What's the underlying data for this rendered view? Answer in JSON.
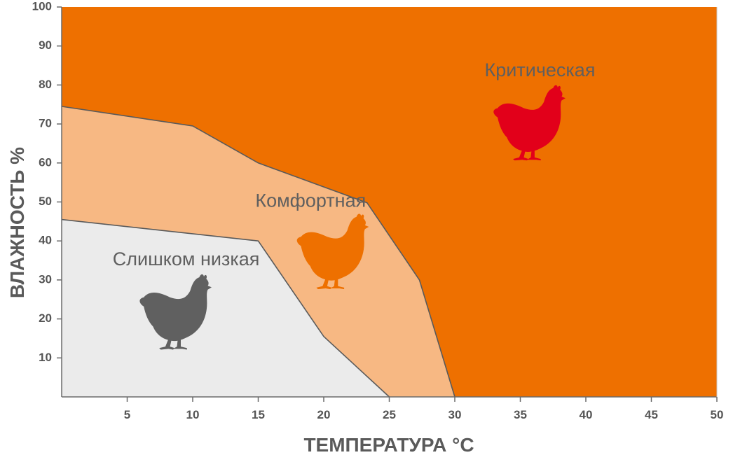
{
  "chart_data": {
    "type": "area",
    "xlabel": "ТЕМПЕРАТУРА °C",
    "ylabel": "ВЛАЖНОСТЬ %",
    "xlim": [
      0,
      50
    ],
    "ylim": [
      0,
      100
    ],
    "x_ticks": [
      5,
      10,
      15,
      20,
      25,
      30,
      35,
      40,
      45,
      50
    ],
    "y_ticks": [
      10,
      20,
      30,
      40,
      50,
      60,
      70,
      80,
      90,
      100
    ],
    "grid": false,
    "zones": [
      {
        "name": "Критическая",
        "color": "#ee7000",
        "icon": "chicken-icon",
        "icon_color": "#e2001a",
        "label_at": [
          36.5,
          83.5
        ],
        "icon_at": [
          35.5,
          70.5
        ]
      },
      {
        "name": "Комфортная",
        "color": "#f7b883",
        "icon": "chicken-icon",
        "icon_color": "#ee7000",
        "label_at": [
          19,
          50
        ],
        "icon_at": [
          20.5,
          37.5
        ]
      },
      {
        "name": "Слишком низкая",
        "color": "#ebebeb",
        "icon": "chicken-icon",
        "icon_color": "#606060",
        "label_at": [
          9.5,
          35
        ],
        "icon_at": [
          8.5,
          22
        ]
      }
    ],
    "boundaries": [
      {
        "between": [
          "Критическая",
          "Комфортная"
        ],
        "points": [
          [
            0,
            74.5
          ],
          [
            10,
            69.5
          ],
          [
            15,
            60
          ],
          [
            23.3,
            49.8
          ],
          [
            27.3,
            30
          ],
          [
            30,
            0
          ]
        ]
      },
      {
        "between": [
          "Комфортная",
          "Слишком низкая"
        ],
        "points": [
          [
            0,
            45.5
          ],
          [
            15,
            40
          ],
          [
            20,
            15.5
          ],
          [
            25,
            0
          ]
        ]
      }
    ]
  }
}
